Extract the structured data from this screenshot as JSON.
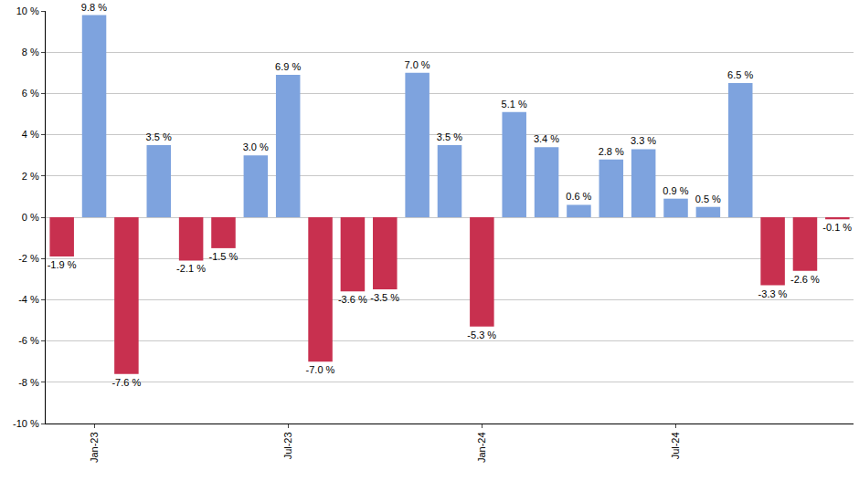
{
  "chart_data": {
    "type": "bar",
    "categories": [
      null,
      "Jan-23",
      null,
      null,
      null,
      null,
      null,
      "Jul-23",
      null,
      null,
      null,
      null,
      null,
      "Jan-24",
      null,
      null,
      null,
      null,
      null,
      "Jul-24",
      null,
      null,
      null,
      null,
      null
    ],
    "values": [
      -1.9,
      9.8,
      -7.6,
      3.5,
      -2.1,
      -1.5,
      3.0,
      6.9,
      -7.0,
      -3.6,
      -3.5,
      7.0,
      3.5,
      -5.3,
      5.1,
      3.4,
      0.6,
      2.8,
      3.3,
      0.9,
      0.5,
      6.5,
      -3.3,
      -2.6,
      -0.1
    ],
    "value_labels": [
      "-1.9 %",
      "9.8 %",
      "-7.6 %",
      "3.5 %",
      "-2.1 %",
      "-1.5 %",
      "3.0 %",
      "6.9 %",
      "-7.0 %",
      "-3.6 %",
      "-3.5 %",
      "7.0 %",
      "3.5 %",
      "-5.3 %",
      "5.1 %",
      "3.4 %",
      "0.6 %",
      "2.8 %",
      "3.3 %",
      "0.9 %",
      "0.5 %",
      "6.5 %",
      "-3.3 %",
      "-2.6 %",
      "-0.1 %"
    ],
    "colors": [
      "#c8304f",
      "#7ea3de",
      "#c8304f",
      "#7ea3de",
      "#c8304f",
      "#c8304f",
      "#7ea3de",
      "#7ea3de",
      "#c8304f",
      "#c8304f",
      "#c8304f",
      "#7ea3de",
      "#7ea3de",
      "#c8304f",
      "#7ea3de",
      "#7ea3de",
      "#7ea3de",
      "#7ea3de",
      "#7ea3de",
      "#7ea3de",
      "#7ea3de",
      "#7ea3de",
      "#c8304f",
      "#c8304f",
      "#c8304f"
    ],
    "ylim": [
      -10,
      10
    ],
    "yticks": [
      {
        "value": -10,
        "label": "-10 %"
      },
      {
        "value": -8,
        "label": "-8 %"
      },
      {
        "value": -6,
        "label": "-6 %"
      },
      {
        "value": -4,
        "label": "-4 %"
      },
      {
        "value": -2,
        "label": "-2 %"
      },
      {
        "value": 0,
        "label": "0 %"
      },
      {
        "value": 2,
        "label": "2 %"
      },
      {
        "value": 4,
        "label": "4 %"
      },
      {
        "value": 6,
        "label": "6 %"
      },
      {
        "value": 8,
        "label": "8 %"
      },
      {
        "value": 10,
        "label": "10 %"
      }
    ],
    "grid": true,
    "data_labels": true
  }
}
